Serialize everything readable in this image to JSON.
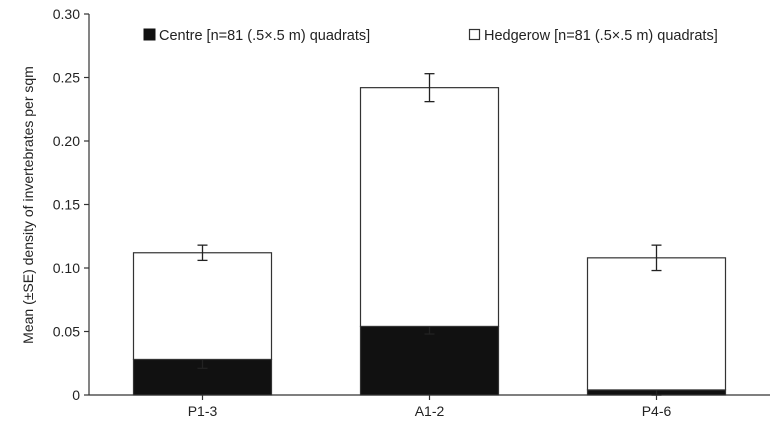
{
  "chart_data": {
    "type": "bar",
    "stacked": true,
    "categories": [
      "P1-3",
      "A1-2",
      "P4-6"
    ],
    "series": [
      {
        "name": "Centre [n=81 (.5×.5 m) quadrats]",
        "color": "#111111",
        "values": [
          0.028,
          0.054,
          0.004
        ],
        "errors": [
          0.007,
          0.006,
          0.004
        ]
      },
      {
        "name": "Hedgerow [n=81 (.5×.5 m) quadrats]",
        "color": "#ffffff",
        "values": [
          0.084,
          0.188,
          0.104
        ],
        "errors": [
          0.006,
          0.011,
          0.01
        ]
      }
    ],
    "ylabel": "Mean (±SE) density of invertebrates per sqm",
    "xlabel": "",
    "ylim": [
      0,
      0.3
    ],
    "yticks": [
      "0",
      "0.05",
      "0.10",
      "0.15",
      "0.20",
      "0.25",
      "0.30"
    ],
    "legend_position": "top",
    "grid": false
  }
}
